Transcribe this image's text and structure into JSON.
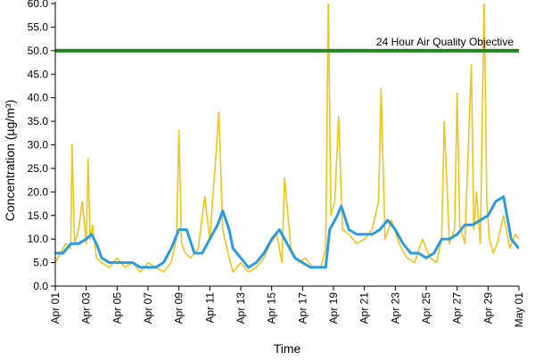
{
  "chart_data": {
    "type": "line",
    "xlabel": "Time",
    "ylabel": "Concentration (µg/m³)",
    "ylim": [
      0,
      60
    ],
    "yticks": [
      "0.0",
      "5.0",
      "10.0",
      "15.0",
      "20.0",
      "25.0",
      "30.0",
      "35.0",
      "40.0",
      "45.0",
      "50.0",
      "55.0",
      "60.0"
    ],
    "xlim": [
      "2024-04-01",
      "2024-05-01"
    ],
    "xtick_labels": [
      "Apr 01",
      "Apr 03",
      "Apr 05",
      "Apr 07",
      "Apr 09",
      "Apr 11",
      "Apr 13",
      "Apr 15",
      "Apr 17",
      "Apr 19",
      "Apr 21",
      "Apr 23",
      "Apr 25",
      "Apr 27",
      "Apr 29",
      "May 01"
    ],
    "grid": false,
    "objective": {
      "label": "24 Hour Air Quality Objective",
      "value": 50,
      "color": "#1e8a1e"
    },
    "series": [
      {
        "key": "hourly",
        "color": "#f0c419",
        "x": [
          "2024-04-01T00",
          "2024-04-01T08",
          "2024-04-01T16",
          "2024-04-02T00",
          "2024-04-02T02",
          "2024-04-02T06",
          "2024-04-02T12",
          "2024-04-02T18",
          "2024-04-03T00",
          "2024-04-03T03",
          "2024-04-03T06",
          "2024-04-03T10",
          "2024-04-03T16",
          "2024-04-04T00",
          "2024-04-04T12",
          "2024-04-05T00",
          "2024-04-05T12",
          "2024-04-06T00",
          "2024-04-06T12",
          "2024-04-07T00",
          "2024-04-07T12",
          "2024-04-08T00",
          "2024-04-08T12",
          "2024-04-08T20",
          "2024-04-09T00",
          "2024-04-09T04",
          "2024-04-09T10",
          "2024-04-09T18",
          "2024-04-10T06",
          "2024-04-10T16",
          "2024-04-11T00",
          "2024-04-11T08",
          "2024-04-11T14",
          "2024-04-11T20",
          "2024-04-12T04",
          "2024-04-12T12",
          "2024-04-13T00",
          "2024-04-13T12",
          "2024-04-14T00",
          "2024-04-14T12",
          "2024-04-14T22",
          "2024-04-15T08",
          "2024-04-15T16",
          "2024-04-15T20",
          "2024-04-16T06",
          "2024-04-16T18",
          "2024-04-17T04",
          "2024-04-17T16",
          "2024-04-18T04",
          "2024-04-18T12",
          "2024-04-18T16",
          "2024-04-18T20",
          "2024-04-19T02",
          "2024-04-19T08",
          "2024-04-19T14",
          "2024-04-20T00",
          "2024-04-20T12",
          "2024-04-21T00",
          "2024-04-21T12",
          "2024-04-21T22",
          "2024-04-22T02",
          "2024-04-22T08",
          "2024-04-22T18",
          "2024-04-23T06",
          "2024-04-23T18",
          "2024-04-24T06",
          "2024-04-24T18",
          "2024-04-25T06",
          "2024-04-25T16",
          "2024-04-26T00",
          "2024-04-26T04",
          "2024-04-26T12",
          "2024-04-26T20",
          "2024-04-27T00",
          "2024-04-27T04",
          "2024-04-27T12",
          "2024-04-27T22",
          "2024-04-28T02",
          "2024-04-28T06",
          "2024-04-28T12",
          "2024-04-28T18",
          "2024-04-28T22",
          "2024-04-29T02",
          "2024-04-29T08",
          "2024-04-29T14",
          "2024-04-30T00",
          "2024-04-30T10",
          "2024-04-30T18",
          "2024-05-01T00"
        ],
        "values": [
          5,
          7,
          9,
          8,
          30,
          9,
          12,
          18,
          9,
          27,
          10,
          13,
          6,
          5,
          4,
          6,
          4,
          5,
          3,
          5,
          4,
          3,
          5,
          10,
          33,
          9,
          7,
          6,
          8,
          19,
          10,
          25,
          37,
          12,
          7,
          3,
          5,
          3,
          4,
          6,
          9,
          11,
          5,
          23,
          8,
          5,
          6,
          4,
          4,
          8,
          61,
          15,
          18,
          36,
          12,
          11,
          9,
          10,
          12,
          18,
          42,
          10,
          14,
          9,
          6,
          5,
          10,
          6,
          5,
          10,
          35,
          9,
          12,
          41,
          13,
          9,
          47,
          12,
          20,
          9,
          62,
          18,
          10,
          7,
          9,
          15,
          8,
          11,
          10
        ]
      },
      {
        "key": "rolling",
        "color": "#2b9be0",
        "x": [
          "2024-04-01T00",
          "2024-04-01T12",
          "2024-04-02T00",
          "2024-04-02T12",
          "2024-04-03T00",
          "2024-04-03T08",
          "2024-04-03T16",
          "2024-04-04T00",
          "2024-04-04T12",
          "2024-04-05T00",
          "2024-04-05T12",
          "2024-04-06T00",
          "2024-04-06T12",
          "2024-04-07T00",
          "2024-04-07T12",
          "2024-04-08T00",
          "2024-04-08T12",
          "2024-04-09T00",
          "2024-04-09T12",
          "2024-04-10T00",
          "2024-04-10T12",
          "2024-04-11T00",
          "2024-04-11T12",
          "2024-04-11T20",
          "2024-04-12T06",
          "2024-04-12T12",
          "2024-04-13T00",
          "2024-04-13T12",
          "2024-04-14T00",
          "2024-04-14T12",
          "2024-04-15T00",
          "2024-04-15T12",
          "2024-04-16T00",
          "2024-04-16T12",
          "2024-04-17T00",
          "2024-04-17T12",
          "2024-04-18T00",
          "2024-04-18T12",
          "2024-04-18T18",
          "2024-04-19T06",
          "2024-04-19T12",
          "2024-04-20T00",
          "2024-04-20T12",
          "2024-04-21T00",
          "2024-04-21T12",
          "2024-04-22T00",
          "2024-04-22T12",
          "2024-04-23T00",
          "2024-04-23T12",
          "2024-04-24T00",
          "2024-04-24T12",
          "2024-04-25T00",
          "2024-04-25T12",
          "2024-04-26T00",
          "2024-04-26T12",
          "2024-04-27T00",
          "2024-04-27T12",
          "2024-04-28T00",
          "2024-04-28T12",
          "2024-04-29T00",
          "2024-04-29T12",
          "2024-04-30T00",
          "2024-04-30T12",
          "2024-05-01T00"
        ],
        "values": [
          7,
          7,
          9,
          9,
          10,
          11,
          9,
          6,
          5,
          5,
          5,
          5,
          4,
          4,
          4,
          5,
          8,
          12,
          12,
          7,
          7,
          10,
          13,
          16,
          12,
          8,
          6,
          4,
          5,
          7,
          10,
          12,
          9,
          6,
          5,
          4,
          4,
          4,
          12,
          15,
          17,
          12,
          11,
          11,
          11,
          12,
          14,
          12,
          9,
          7,
          7,
          6,
          7,
          10,
          10,
          11,
          13,
          13,
          14,
          15,
          18,
          19,
          10,
          8
        ]
      }
    ]
  }
}
